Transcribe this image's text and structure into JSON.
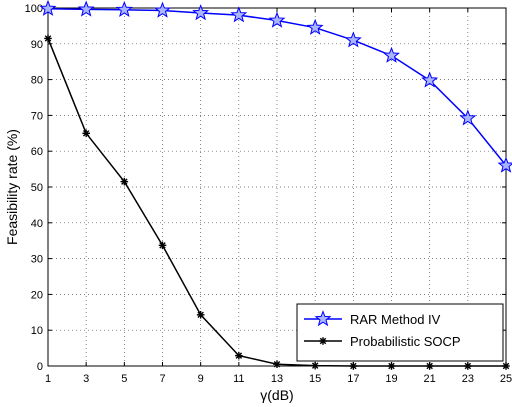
{
  "chart_data": {
    "type": "line",
    "title": "",
    "xlabel": "γ(dB)",
    "ylabel": "Feasibility rate (%)",
    "xlim": [
      1,
      25
    ],
    "ylim": [
      0,
      100
    ],
    "x_ticks": [
      1,
      3,
      5,
      7,
      9,
      11,
      13,
      15,
      17,
      19,
      21,
      23,
      25
    ],
    "y_ticks": [
      0,
      10,
      20,
      30,
      40,
      50,
      60,
      70,
      80,
      90,
      100
    ],
    "grid": true,
    "legend_position": "bottom-right",
    "x": [
      1,
      3,
      5,
      7,
      9,
      11,
      13,
      15,
      17,
      19,
      21,
      23,
      25
    ],
    "series": [
      {
        "name": "RAR Method IV",
        "color": "#0000ff",
        "marker": "star-icon",
        "values": [
          99.8,
          99.6,
          99.5,
          99.3,
          98.6,
          98.0,
          96.5,
          94.5,
          91.0,
          86.7,
          79.8,
          69.2,
          56.0
        ]
      },
      {
        "name": "Probabilistic SOCP",
        "color": "#000000",
        "marker": "asterisk-icon",
        "values": [
          91.5,
          65.0,
          51.5,
          33.7,
          14.3,
          2.9,
          0.5,
          0.1,
          0,
          0,
          0,
          0,
          0
        ]
      }
    ]
  }
}
